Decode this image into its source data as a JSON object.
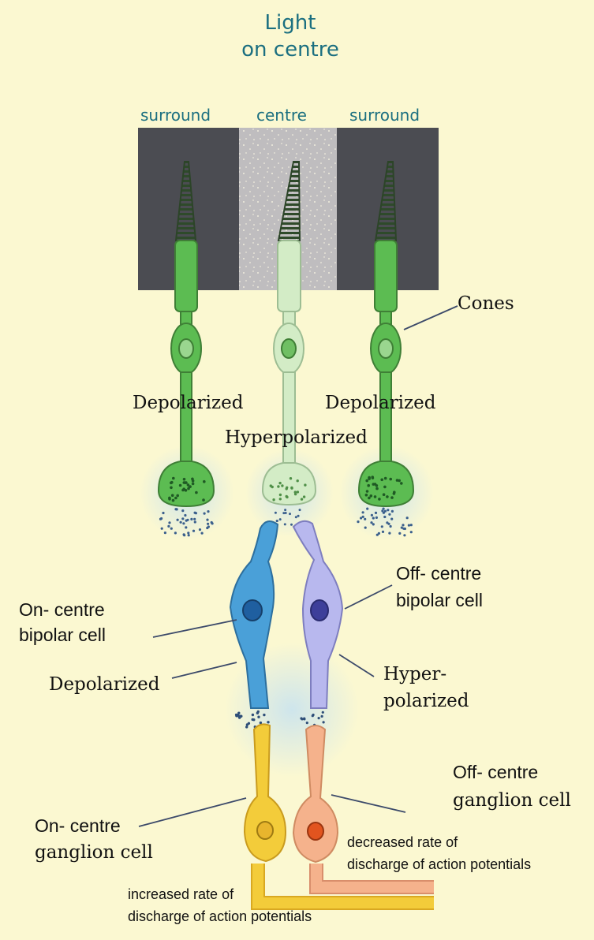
{
  "title": {
    "line1": "Light",
    "line2": "on centre"
  },
  "columns": {
    "left": "surround",
    "middle": "centre",
    "right": "surround"
  },
  "colors": {
    "background": "#fbf8d1",
    "dark_surround": "#4b4c52",
    "lit_centre": "#bfbdbf",
    "cone_green": "#5cbc52",
    "cone_pale": "#d3ecc6",
    "on_bipolar": "#4aa0d8",
    "off_bipolar": "#b8b8ee",
    "on_ganglion": "#f3cc3a",
    "off_ganglion": "#f5b28c",
    "heading_teal": "#1b6f80"
  },
  "labels": {
    "cones": "Cones",
    "depolarized_left": "Depolarized",
    "depolarized_right": "Depolarized",
    "hyperpolarized": "Hyperpolarized",
    "on_bipolar_1": "On- centre",
    "on_bipolar_2": "bipolar cell",
    "off_bipolar_1": "Off- centre",
    "off_bipolar_2": "bipolar cell",
    "depolarized_bipolar": "Depolarized",
    "hyper_1": "Hyper-",
    "hyper_2": "polarized",
    "off_ganglion_1": "Off- centre",
    "off_ganglion_2": "ganglion cell",
    "on_ganglion_1": "On- centre",
    "on_ganglion_2": "ganglion cell",
    "decreased_1": "decreased rate of",
    "decreased_2": "discharge of action potentials",
    "increased_1": "increased rate of",
    "increased_2": "discharge of action potentials"
  }
}
